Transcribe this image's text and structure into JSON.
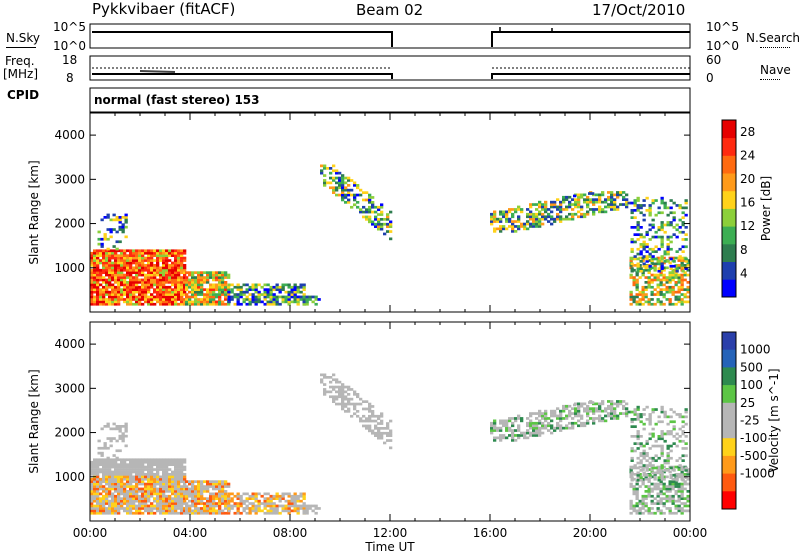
{
  "header": {
    "station": "Pykkvibaer (fitACF)",
    "beam": "Beam 02",
    "date": "17/Oct/2010"
  },
  "top_panels": {
    "nsky_label": "N.Sky",
    "nsky_ticks": [
      "10^5",
      "10^0"
    ],
    "nsearch_label": "N.Search",
    "nsearch_ticks": [
      "10^5",
      "10^0"
    ],
    "freq_label": "Freq.",
    "freq_unit": "[MHz]",
    "freq_ticks": [
      "18",
      "8"
    ],
    "nave_label": "Nave",
    "nave_ticks": [
      "60",
      "0"
    ],
    "cpid_label": "CPID",
    "cpid_value": "normal (fast stereo) 153"
  },
  "colors": {
    "power": [
      "#0000ff",
      "#1e3fae",
      "#2e7d4f",
      "#3cae53",
      "#8ccf3a",
      "#ffd21a",
      "#ff9a1a",
      "#ff6a10",
      "#ff2a10",
      "#e60000"
    ],
    "velocity": [
      "#2a3faa",
      "#2563b8",
      "#2e8a4f",
      "#5cc545",
      "#b6b6b6",
      "#b6b6b6",
      "#ffd21a",
      "#ff9a1a",
      "#ff5a10",
      "#ff0000"
    ]
  },
  "chart_data": [
    {
      "type": "heatmap",
      "title": "Power",
      "ylabel": "Slant Range [km]",
      "yticks": [
        "1000",
        "2000",
        "3000",
        "4000"
      ],
      "ylim": [
        0,
        4500
      ],
      "colorbar_label": "Power [dB]",
      "colorbar_ticks": [
        "4",
        "8",
        "12",
        "16",
        "20",
        "24",
        "28"
      ],
      "colorbar_range": [
        0,
        30
      ]
    },
    {
      "type": "heatmap",
      "title": "Velocity",
      "ylabel": "Slant Range [km]",
      "yticks": [
        "1000",
        "2000",
        "3000",
        "4000"
      ],
      "ylim": [
        0,
        4500
      ],
      "colorbar_label": "Velocity [m s^-1]",
      "colorbar_ticks": [
        "1000",
        "500",
        "100",
        "25",
        "-25",
        "-100",
        "-500",
        "-1000"
      ]
    }
  ],
  "xaxis": {
    "label": "Time UT",
    "ticks": [
      "00:00",
      "04:00",
      "08:00",
      "12:00",
      "16:00",
      "20:00",
      "00:00"
    ],
    "range_hours": [
      0,
      24
    ],
    "data_gap_hours": [
      12,
      16
    ]
  }
}
